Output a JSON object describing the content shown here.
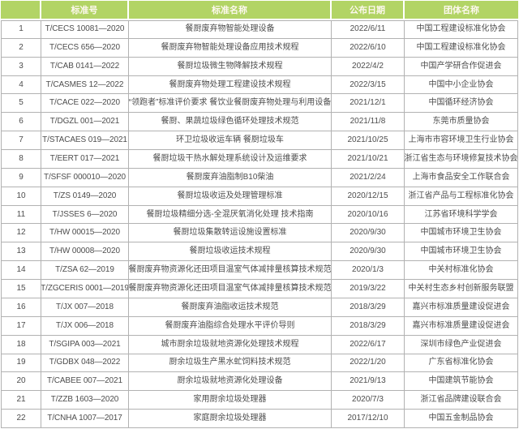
{
  "colors": {
    "header_bg": "#b2d465",
    "header_text": "#fdf8ef",
    "border": "#b2b2b2",
    "cell_text": "#4d4d4d",
    "row_bg": "#ffffff"
  },
  "table": {
    "columns": [
      {
        "label": ""
      },
      {
        "label": "标准号"
      },
      {
        "label": "标准名称"
      },
      {
        "label": "公布日期"
      },
      {
        "label": "团体名称"
      }
    ],
    "rows": [
      {
        "no": "1",
        "std_no": "T/CECS 10081—2020",
        "name": "餐厨废弃物智能处理设备",
        "date": "2022/6/11",
        "org": "中国工程建设标准化协会"
      },
      {
        "no": "2",
        "std_no": "T/CECS 656—2020",
        "name": "餐厨废弃物智能处理设备应用技术规程",
        "date": "2022/6/10",
        "org": "中国工程建设标准化协会"
      },
      {
        "no": "3",
        "std_no": "T/CAB 0141—2022",
        "name": "餐厨垃圾微生物降解技术规程",
        "date": "2022/4/2",
        "org": "中国产学研合作促进会"
      },
      {
        "no": "4",
        "std_no": "T/CASMES 12—2022",
        "name": "餐厨废弃物处理工程建设技术规程",
        "date": "2022/3/15",
        "org": "中国中小企业协会"
      },
      {
        "no": "5",
        "std_no": "T/CACE 022—2020",
        "name": "“领跑者”标准评价要求 餐饮业餐厨废弃物处理与利用设备",
        "date": "2021/12/1",
        "org": "中国循环经济协会"
      },
      {
        "no": "6",
        "std_no": "T/DGZL 001—2021",
        "name": "餐厨、果蔬垃圾绿色循环处理技术规范",
        "date": "2021/11/8",
        "org": "东莞市质量协会"
      },
      {
        "no": "7",
        "std_no": "T/STACAES 019—2021",
        "name": "环卫垃圾收运车辆 餐厨垃圾车",
        "date": "2021/10/25",
        "org": "上海市市容环境卫生行业协会"
      },
      {
        "no": "8",
        "std_no": "T/EERT 017—2021",
        "name": "餐厨垃圾干热水解处理系统设计及运维要求",
        "date": "2021/10/21",
        "org": "浙江省生态与环境修复技术协会"
      },
      {
        "no": "9",
        "std_no": "T/SFSF 000010—2020",
        "name": "餐厨废弃油脂制B10柴油",
        "date": "2021/2/24",
        "org": "上海市食品安全工作联合会"
      },
      {
        "no": "10",
        "std_no": "T/ZS 0149—2020",
        "name": "餐厨垃圾收运及处理管理标准",
        "date": "2020/12/15",
        "org": "浙江省产品与工程标准化协会"
      },
      {
        "no": "11",
        "std_no": "T/JSSES 6—2020",
        "name": "餐厨垃圾精细分选-全混厌氧消化处理 技术指南",
        "date": "2020/10/16",
        "org": "江苏省环境科学学会"
      },
      {
        "no": "12",
        "std_no": "T/HW 00015—2020",
        "name": "餐厨垃圾集散转运设施设置标准",
        "date": "2020/9/30",
        "org": "中国城市环境卫生协会"
      },
      {
        "no": "13",
        "std_no": "T/HW 00008—2020",
        "name": "餐厨垃圾收运技术规程",
        "date": "2020/9/30",
        "org": "中国城市环境卫生协会"
      },
      {
        "no": "14",
        "std_no": "T/ZSA 62—2019",
        "name": "餐厨废弃物资源化还田项目温室气体减排量核算技术规范",
        "date": "2020/1/3",
        "org": "中关村标准化协会"
      },
      {
        "no": "15",
        "std_no": "T/ZGCERIS 0001—2019",
        "name": "餐厨废弃物资源化还田项目温室气体减排量核算技术规范",
        "date": "2019/3/22",
        "org": "中关村生态乡村创新服务联盟"
      },
      {
        "no": "16",
        "std_no": "T/JX 007—2018",
        "name": "餐厨废弃油脂收运技术规范",
        "date": "2018/3/29",
        "org": "嘉兴市标准质量建设促进会"
      },
      {
        "no": "17",
        "std_no": "T/JX 006—2018",
        "name": "餐厨废弃油脂综合处理水平评价导则",
        "date": "2018/3/29",
        "org": "嘉兴市标准质量建设促进会"
      },
      {
        "no": "18",
        "std_no": "T/SGIPA 003—2021",
        "name": "城市厨余垃圾就地资源化处理技术规程",
        "date": "2022/6/17",
        "org": "深圳市绿色产业促进会"
      },
      {
        "no": "19",
        "std_no": "T/GDBX 048—2022",
        "name": "厨余垃圾生产黑水虻饲料技术规范",
        "date": "2022/1/20",
        "org": "广东省标准化协会"
      },
      {
        "no": "20",
        "std_no": "T/CABEE 007—2021",
        "name": "厨余垃圾就地资源化处理设备",
        "date": "2021/9/13",
        "org": "中国建筑节能协会"
      },
      {
        "no": "21",
        "std_no": "T/ZZB 1603—2020",
        "name": "家用厨余垃圾处理器",
        "date": "2020/7/3",
        "org": "浙江省品牌建设联合会"
      },
      {
        "no": "22",
        "std_no": "T/CNHA 1007—2017",
        "name": "家庭厨余垃圾处理器",
        "date": "2017/12/10",
        "org": "中国五金制品协会"
      }
    ]
  }
}
